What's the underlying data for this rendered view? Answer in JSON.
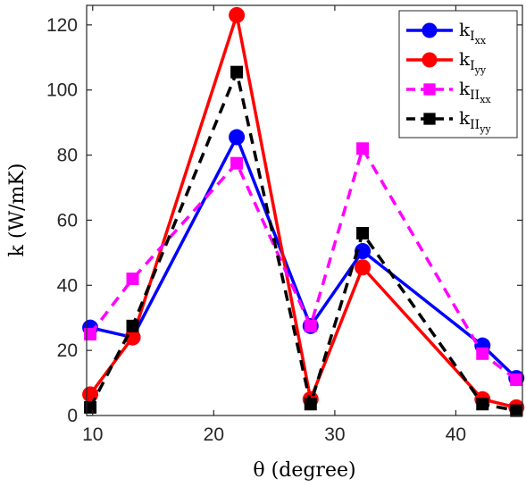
{
  "chart_data": {
    "type": "line",
    "xlabel": "θ (degree)",
    "ylabel": "k (W/mK)",
    "xlim": [
      9.5,
      45.5
    ],
    "ylim": [
      0,
      126
    ],
    "xticks": [
      10,
      20,
      30,
      40
    ],
    "yticks": [
      0,
      20,
      40,
      60,
      80,
      100,
      120
    ],
    "x": [
      9.8,
      13.3,
      21.9,
      28.0,
      32.3,
      42.2,
      45.0
    ],
    "grid": false,
    "legend_position": "top-right",
    "series": [
      {
        "name": "k_{I_xx}",
        "label_main": "k",
        "label_sub": "I",
        "label_subsub": "xx",
        "color": "#0000ff",
        "line": "solid",
        "marker": "circle",
        "values": [
          27.0,
          24.0,
          85.5,
          27.5,
          50.5,
          21.5,
          11.5
        ]
      },
      {
        "name": "k_{I_yy}",
        "label_main": "k",
        "label_sub": "I",
        "label_subsub": "yy",
        "color": "#ff0000",
        "line": "solid",
        "marker": "circle",
        "values": [
          6.5,
          24.0,
          123.0,
          5.0,
          45.5,
          5.0,
          2.5
        ]
      },
      {
        "name": "k_{II_xx}",
        "label_main": "k",
        "label_sub": "II",
        "label_subsub": "xx",
        "color": "#ff00ff",
        "line": "dashed",
        "marker": "square",
        "values": [
          25.0,
          42.0,
          77.5,
          27.5,
          82.0,
          19.0,
          11.0
        ]
      },
      {
        "name": "k_{II_yy}",
        "label_main": "k",
        "label_sub": "II",
        "label_subsub": "yy",
        "color": "#000000",
        "line": "dashed",
        "marker": "square",
        "values": [
          2.5,
          27.5,
          105.5,
          3.5,
          56.0,
          3.5,
          1.5
        ]
      }
    ]
  }
}
